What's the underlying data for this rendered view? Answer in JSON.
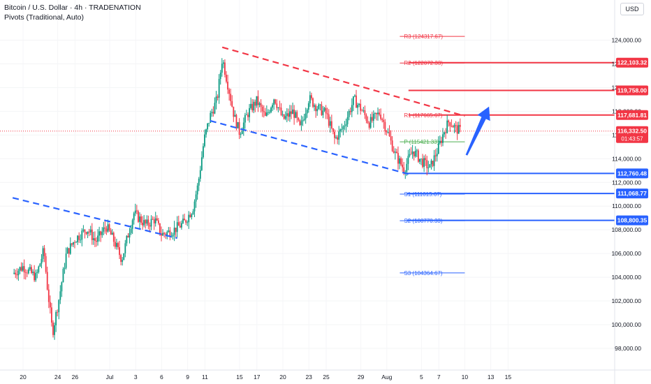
{
  "header": {
    "title": "Bitcoin / U.S. Dollar · 4h · TRADENATION",
    "indicator": "Pivots (Traditional, Auto)",
    "currency": "USD"
  },
  "colors": {
    "up": "#089981",
    "down": "#f23645",
    "red": "#f23645",
    "blue": "#2962ff",
    "pivot_green": "#4caf50",
    "price_bg": "#f23645",
    "arrow": "#2962ff"
  },
  "chart_data": {
    "type": "candlestick",
    "ylim": [
      97000,
      127000
    ],
    "y_ticks": [
      98000,
      100000,
      102000,
      104000,
      106000,
      108000,
      110000,
      112000,
      114000,
      116000,
      118000,
      120000,
      122000,
      124000
    ],
    "y_tick_labels": [
      "98,000.00",
      "100,000.00",
      "102,000.00",
      "104,000.00",
      "106,000.00",
      "108,000.00",
      "110,000.00",
      "112,000.00",
      "114,000.00",
      "116,000.00",
      "118,000.00",
      "120,000.00",
      "122,000.00",
      "124,000.00"
    ],
    "x_ticks": [
      {
        "label": "20",
        "day": 0
      },
      {
        "label": "24",
        "day": 4
      },
      {
        "label": "26",
        "day": 6
      },
      {
        "label": "Jul",
        "day": 10
      },
      {
        "label": "3",
        "day": 13
      },
      {
        "label": "6",
        "day": 16
      },
      {
        "label": "9",
        "day": 19
      },
      {
        "label": "11",
        "day": 21
      },
      {
        "label": "15",
        "day": 25
      },
      {
        "label": "17",
        "day": 27
      },
      {
        "label": "20",
        "day": 30
      },
      {
        "label": "23",
        "day": 33
      },
      {
        "label": "25",
        "day": 35
      },
      {
        "label": "29",
        "day": 39
      },
      {
        "label": "Aug",
        "day": 42
      },
      {
        "label": "5",
        "day": 46
      },
      {
        "label": "7",
        "day": 48
      },
      {
        "label": "10",
        "day": 51
      },
      {
        "label": "13",
        "day": 54
      },
      {
        "label": "15",
        "day": 56
      }
    ],
    "price_path": [
      [
        -1.2,
        104300
      ],
      [
        0.0,
        104900
      ],
      [
        1.5,
        104000
      ],
      [
        2.4,
        106300
      ],
      [
        2.8,
        103200
      ],
      [
        3.4,
        99300
      ],
      [
        4.2,
        102400
      ],
      [
        5.0,
        106000
      ],
      [
        6.0,
        107200
      ],
      [
        7.4,
        108100
      ],
      [
        8.4,
        107000
      ],
      [
        9.6,
        108300
      ],
      [
        10.4,
        107200
      ],
      [
        11.4,
        105500
      ],
      [
        12.2,
        107800
      ],
      [
        12.8,
        109400
      ],
      [
        14.2,
        108400
      ],
      [
        15.2,
        108900
      ],
      [
        16.0,
        107600
      ],
      [
        17.2,
        107900
      ],
      [
        18.6,
        108600
      ],
      [
        19.6,
        109800
      ],
      [
        20.2,
        111800
      ],
      [
        20.9,
        115600
      ],
      [
        21.6,
        117600
      ],
      [
        22.4,
        119000
      ],
      [
        23.0,
        122500
      ],
      [
        23.8,
        119700
      ],
      [
        24.4,
        117500
      ],
      [
        25.0,
        116200
      ],
      [
        26.0,
        117900
      ],
      [
        27.0,
        118900
      ],
      [
        28.0,
        117400
      ],
      [
        29.0,
        119200
      ],
      [
        30.0,
        117300
      ],
      [
        31.2,
        118000
      ],
      [
        32.0,
        116500
      ],
      [
        33.0,
        119100
      ],
      [
        34.0,
        118300
      ],
      [
        35.0,
        117800
      ],
      [
        36.0,
        115600
      ],
      [
        37.0,
        116700
      ],
      [
        38.2,
        119000
      ],
      [
        39.0,
        118200
      ],
      [
        40.0,
        117000
      ],
      [
        41.2,
        117900
      ],
      [
        42.0,
        116400
      ],
      [
        43.0,
        114300
      ],
      [
        44.0,
        113100
      ],
      [
        45.0,
        114700
      ],
      [
        46.0,
        113800
      ],
      [
        47.0,
        113200
      ],
      [
        48.0,
        115000
      ],
      [
        48.6,
        116300
      ],
      [
        49.2,
        117200
      ],
      [
        50.0,
        116500
      ],
      [
        50.6,
        116330
      ]
    ],
    "trendlines": [
      {
        "name": "upper-red-trendline",
        "color": "red",
        "dash": true,
        "from": [
          23.0,
          123400
        ],
        "to": [
          51.0,
          117600
        ]
      },
      {
        "name": "lower-blue-trendline",
        "color": "blue",
        "dash": true,
        "from": [
          21.6,
          117200
        ],
        "to": [
          44.5,
          112700
        ]
      },
      {
        "name": "old-blue-trendline",
        "color": "blue",
        "dash": true,
        "from": [
          -1.2,
          110700
        ],
        "to": [
          17.8,
          107300
        ]
      }
    ],
    "pivots": [
      {
        "label": "R3 (124317.67)",
        "value": 124317.67,
        "color": "red",
        "from_day": 43.5,
        "to_day": 51,
        "width": 1
      },
      {
        "label": "R2 (122072.33)",
        "value": 122072.33,
        "color": "red",
        "from_day": 43.5,
        "to_day": 51,
        "width": 1
      },
      {
        "label": "P (115421.33)",
        "value": 115421.33,
        "color": "pivot_green",
        "from_day": 43.5,
        "to_day": 51,
        "width": 1
      },
      {
        "label": "S1 (111015.67)",
        "value": 111015.67,
        "color": "blue",
        "from_day": 43.5,
        "to_day": 51,
        "width": 1
      },
      {
        "label": "S2 (108770.33)",
        "value": 108770.33,
        "color": "blue",
        "from_day": 43.5,
        "to_day": 51,
        "width": 1
      },
      {
        "label": "S3 (104364.67)",
        "value": 104364.67,
        "color": "blue",
        "from_day": 43.5,
        "to_day": 51,
        "width": 1
      }
    ],
    "pivot_r1_label": "R1 (117665.67)",
    "levels": [
      {
        "value": 122103.32,
        "label": "122,103.32",
        "color": "red",
        "from_day": 44.5
      },
      {
        "value": 119758.0,
        "label": "119,758.00",
        "color": "red",
        "from_day": 44.5
      },
      {
        "value": 117681.81,
        "label": "117,681.81",
        "color": "red",
        "from_day": 44.5
      },
      {
        "value": 112760.48,
        "label": "112,760.48",
        "color": "blue",
        "from_day": 44.3
      },
      {
        "value": 111068.77,
        "label": "111,068.77",
        "color": "blue",
        "from_day": 44.3
      },
      {
        "value": 108800.35,
        "label": "108,800.35",
        "color": "blue",
        "from_day": 44.3
      }
    ],
    "last_price": {
      "value": 116332.5,
      "label": "116,332.50",
      "countdown": "01:43:57"
    },
    "arrow": {
      "from": [
        51.2,
        114300
      ],
      "to": [
        53.8,
        118400
      ]
    }
  }
}
